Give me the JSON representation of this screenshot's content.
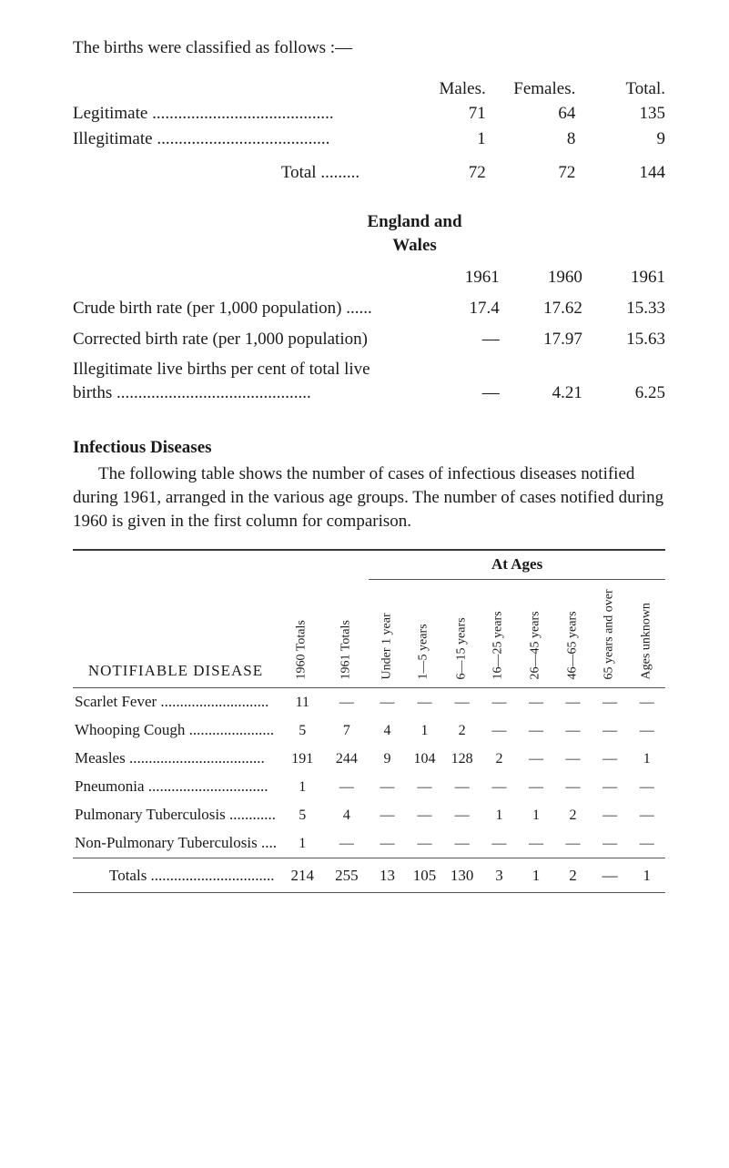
{
  "intro": "The births were classified as follows :—",
  "birthsTable": {
    "headers": {
      "males": "Males.",
      "females": "Females.",
      "total": "Total."
    },
    "rows": [
      {
        "label": "Legitimate",
        "dots": "..........................................",
        "males": "71",
        "females": "64",
        "total": "135"
      },
      {
        "label": "Illegitimate",
        "dots": "........................................",
        "males": "1",
        "females": "8",
        "total": "9"
      }
    ],
    "totalRow": {
      "label": "Total",
      "dots": ".........",
      "males": "72",
      "females": "72",
      "total": "144"
    }
  },
  "ewHeading": {
    "line1": "England and",
    "line2": "Wales"
  },
  "ratesTable": {
    "years": {
      "c1": "1961",
      "c2": "1960",
      "c3": "1961"
    },
    "rows": [
      {
        "label": "Crude birth rate (per 1,000 population) ......",
        "c1": "17.4",
        "c2": "17.62",
        "c3": "15.33"
      },
      {
        "label": "Corrected birth rate (per 1,000 population)",
        "c1": "—",
        "c2": "17.97",
        "c3": "15.63"
      },
      {
        "label": "Illegitimate live births per cent of total live\n      births .............................................",
        "c1": "—",
        "c2": "4.21",
        "c3": "6.25"
      }
    ]
  },
  "infectious": {
    "heading": "Infectious Diseases",
    "para": "The following table shows the number of cases of infectious diseases notified during 1961, arranged in the various age groups. The number of cases notified during 1960 is given in the first column for comparison."
  },
  "diseaseTable": {
    "ndLabel": "NOTIFIABLE DISEASE",
    "agesLabel": "At Ages",
    "cols": [
      "1960 Totals",
      "1961 Totals",
      "Under 1 year",
      "1—5 years",
      "6—15 years",
      "16—25 years",
      "26—45 years",
      "46—65 years",
      "65 years and over",
      "Ages unknown"
    ],
    "rows": [
      {
        "label": "Scarlet Fever ............................",
        "v": [
          "11",
          "—",
          "—",
          "—",
          "—",
          "—",
          "—",
          "—",
          "—",
          "—"
        ]
      },
      {
        "label": "Whooping Cough ......................",
        "v": [
          "5",
          "7",
          "4",
          "1",
          "2",
          "—",
          "—",
          "—",
          "—",
          "—"
        ]
      },
      {
        "label": "Measles ...................................",
        "v": [
          "191",
          "244",
          "9",
          "104",
          "128",
          "2",
          "—",
          "—",
          "—",
          "1"
        ]
      },
      {
        "label": "Pneumonia ...............................",
        "v": [
          "1",
          "—",
          "—",
          "—",
          "—",
          "—",
          "—",
          "—",
          "—",
          "—"
        ]
      },
      {
        "label": "Pulmonary Tuberculosis ............",
        "v": [
          "5",
          "4",
          "—",
          "—",
          "—",
          "1",
          "1",
          "2",
          "—",
          "—"
        ]
      },
      {
        "label": "Non-Pulmonary Tuberculosis ....",
        "v": [
          "1",
          "—",
          "—",
          "—",
          "—",
          "—",
          "—",
          "—",
          "—",
          "—"
        ]
      }
    ],
    "totals": {
      "label": "Totals ................................",
      "v": [
        "214",
        "255",
        "13",
        "105",
        "130",
        "3",
        "1",
        "2",
        "—",
        "1"
      ]
    }
  }
}
